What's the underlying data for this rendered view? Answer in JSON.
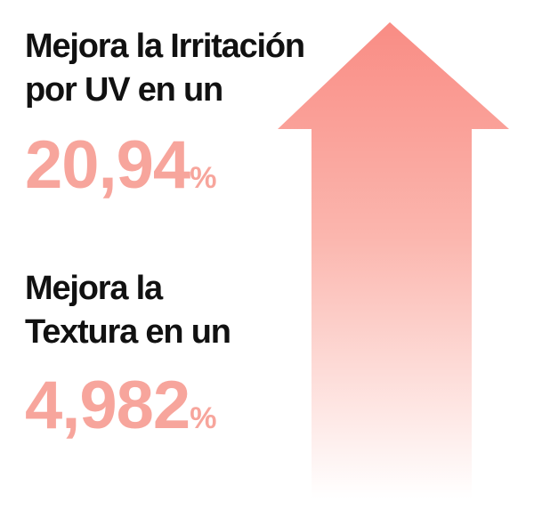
{
  "stats": [
    {
      "label_lines": [
        "Mejora la Irritación",
        "por UV en un"
      ],
      "value": "20,94",
      "unit": "%"
    },
    {
      "label_lines": [
        "Mejora la",
        "Textura en un"
      ],
      "value": "4,982",
      "unit": "%"
    }
  ]
}
